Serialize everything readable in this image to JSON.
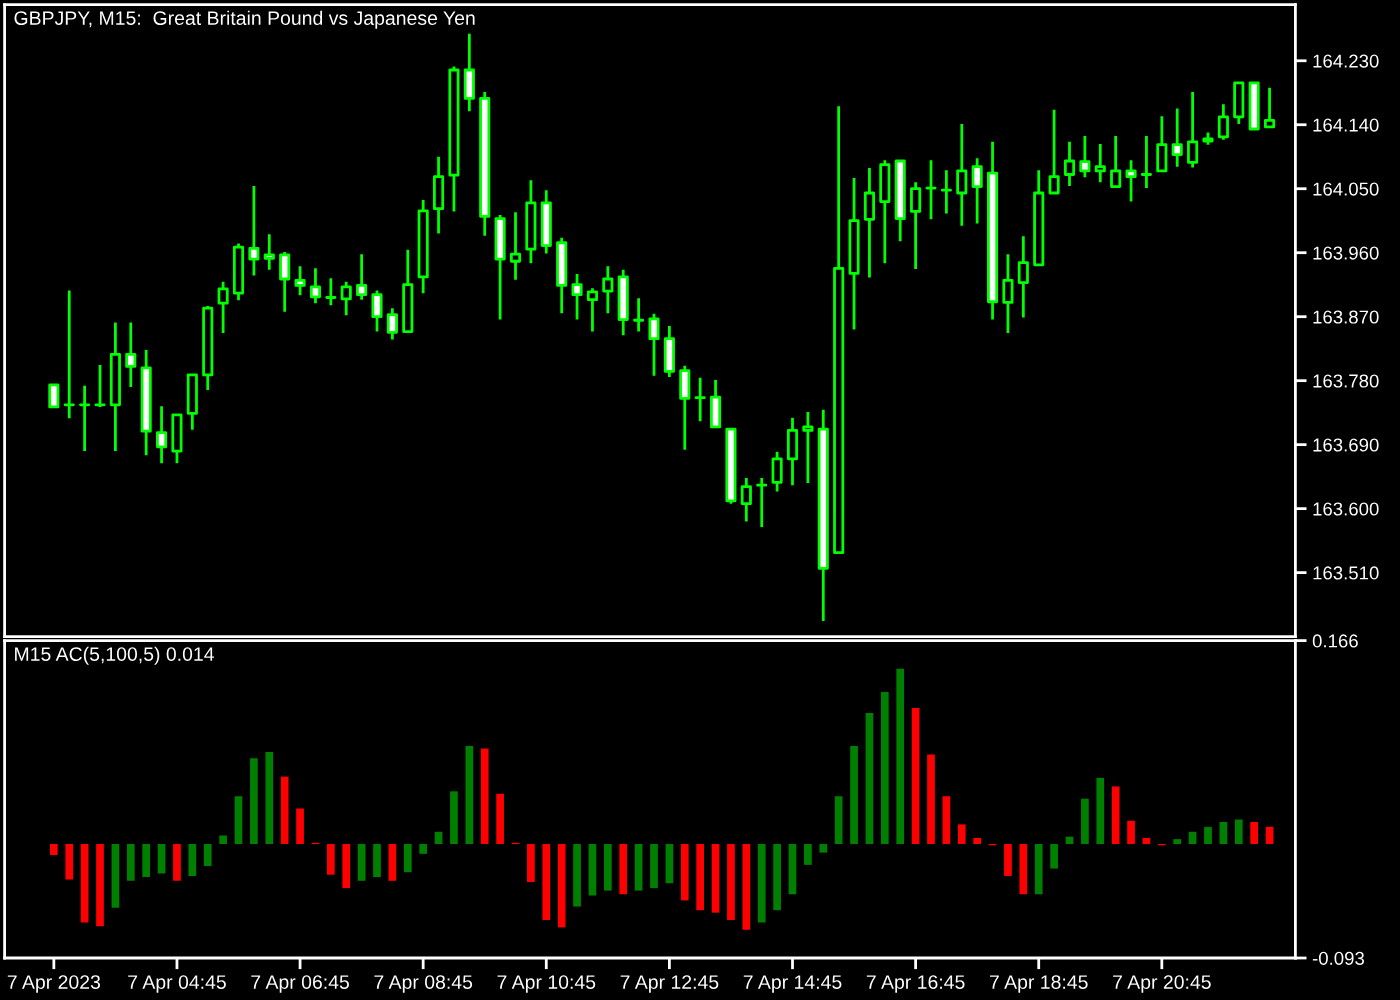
{
  "chart_data": [
    {
      "type": "candlestick",
      "title": "GBPJPY, M15:  Great Britain Pound vs Japanese Yen",
      "categories": [
        null,
        null,
        null,
        null,
        null,
        null,
        null,
        null,
        null,
        null,
        null,
        null,
        null,
        null,
        null,
        null,
        null,
        null,
        null,
        null,
        null,
        null,
        null,
        null,
        null,
        null,
        null,
        null,
        null,
        null,
        null,
        null,
        null,
        null,
        null,
        null,
        null,
        null,
        null,
        null,
        null,
        null,
        null,
        null,
        null,
        null,
        null,
        null,
        null,
        null,
        null,
        null,
        null,
        null,
        null,
        null,
        null,
        null,
        null,
        null,
        null,
        null,
        null,
        null,
        null,
        null,
        null,
        null,
        null,
        null,
        null,
        null,
        null,
        null,
        null,
        null,
        null,
        null,
        null,
        null
      ],
      "ohlc": [
        [
          163.774,
          163.774,
          163.743,
          163.743
        ],
        [
          163.746,
          163.907,
          163.727,
          163.746
        ],
        [
          163.746,
          163.773,
          163.681,
          163.746
        ],
        [
          163.746,
          163.802,
          163.743,
          163.746
        ],
        [
          163.746,
          163.862,
          163.681,
          163.817
        ],
        [
          163.817,
          163.862,
          163.771,
          163.8
        ],
        [
          163.798,
          163.823,
          163.675,
          163.709
        ],
        [
          163.707,
          163.744,
          163.664,
          163.687
        ],
        [
          163.681,
          163.732,
          163.664,
          163.732
        ],
        [
          163.734,
          163.788,
          163.711,
          163.788
        ],
        [
          163.788,
          163.885,
          163.767,
          163.882
        ],
        [
          163.889,
          163.919,
          163.847,
          163.909
        ],
        [
          163.903,
          163.973,
          163.893,
          163.968
        ],
        [
          163.966,
          164.054,
          163.928,
          163.951
        ],
        [
          163.957,
          163.986,
          163.936,
          163.952
        ],
        [
          163.957,
          163.961,
          163.877,
          163.923
        ],
        [
          163.921,
          163.941,
          163.9,
          163.914
        ],
        [
          163.912,
          163.938,
          163.889,
          163.898
        ],
        [
          163.897,
          163.924,
          163.886,
          163.897
        ],
        [
          163.895,
          163.919,
          163.872,
          163.912
        ],
        [
          163.914,
          163.958,
          163.894,
          163.901
        ],
        [
          163.901,
          163.907,
          163.849,
          163.87
        ],
        [
          163.873,
          163.882,
          163.838,
          163.848
        ],
        [
          163.849,
          163.964,
          163.847,
          163.915
        ],
        [
          163.926,
          164.034,
          163.903,
          164.019
        ],
        [
          164.022,
          164.095,
          163.987,
          164.067
        ],
        [
          164.069,
          164.222,
          164.018,
          164.217
        ],
        [
          164.217,
          164.268,
          164.159,
          164.177
        ],
        [
          164.177,
          164.186,
          163.984,
          164.011
        ],
        [
          164.008,
          164.013,
          163.866,
          163.951
        ],
        [
          163.948,
          164.017,
          163.922,
          163.958
        ],
        [
          163.965,
          164.062,
          163.945,
          164.03
        ],
        [
          164.03,
          164.048,
          163.959,
          163.97
        ],
        [
          163.974,
          163.981,
          163.875,
          163.914
        ],
        [
          163.915,
          163.93,
          163.866,
          163.901
        ],
        [
          163.894,
          163.91,
          163.849,
          163.905
        ],
        [
          163.906,
          163.941,
          163.875,
          163.923
        ],
        [
          163.926,
          163.936,
          163.844,
          163.866
        ],
        [
          163.865,
          163.896,
          163.849,
          163.865
        ],
        [
          163.867,
          163.874,
          163.787,
          163.839
        ],
        [
          163.839,
          163.857,
          163.785,
          163.793
        ],
        [
          163.794,
          163.801,
          163.683,
          163.755
        ],
        [
          163.756,
          163.784,
          163.723,
          163.756
        ],
        [
          163.757,
          163.781,
          163.713,
          163.715
        ],
        [
          163.712,
          163.712,
          163.607,
          163.611
        ],
        [
          163.607,
          163.643,
          163.582,
          163.631
        ],
        [
          163.633,
          163.643,
          163.574,
          163.633
        ],
        [
          163.637,
          163.68,
          163.624,
          163.67
        ],
        [
          163.67,
          163.728,
          163.633,
          163.71
        ],
        [
          163.71,
          163.736,
          163.636,
          163.715
        ],
        [
          163.712,
          163.739,
          163.442,
          163.516
        ],
        [
          163.538,
          164.166,
          163.538,
          163.938
        ],
        [
          163.931,
          164.065,
          163.852,
          164.005
        ],
        [
          164.007,
          164.079,
          163.925,
          164.044
        ],
        [
          164.032,
          164.09,
          163.945,
          164.084
        ],
        [
          164.089,
          164.089,
          163.976,
          164.008
        ],
        [
          164.018,
          164.059,
          163.937,
          164.05
        ],
        [
          164.051,
          164.09,
          164.007,
          164.051
        ],
        [
          164.048,
          164.076,
          164.015,
          164.048
        ],
        [
          164.044,
          164.141,
          163.998,
          164.075
        ],
        [
          164.081,
          164.093,
          164.001,
          164.053
        ],
        [
          164.072,
          164.116,
          163.866,
          163.891
        ],
        [
          163.89,
          163.958,
          163.847,
          163.921
        ],
        [
          163.918,
          163.983,
          163.869,
          163.946
        ],
        [
          163.943,
          164.076,
          163.943,
          164.044
        ],
        [
          164.044,
          164.161,
          164.044,
          164.067
        ],
        [
          164.07,
          164.116,
          164.054,
          164.089
        ],
        [
          164.088,
          164.124,
          164.066,
          164.075
        ],
        [
          164.075,
          164.113,
          164.059,
          164.081
        ],
        [
          164.053,
          164.124,
          164.053,
          164.075
        ],
        [
          164.075,
          164.09,
          164.032,
          164.067
        ],
        [
          164.07,
          164.124,
          164.051,
          164.07
        ],
        [
          164.075,
          164.152,
          164.075,
          164.112
        ],
        [
          164.112,
          164.163,
          164.081,
          164.098
        ],
        [
          164.087,
          164.186,
          164.08,
          164.116
        ],
        [
          164.117,
          164.129,
          164.112,
          164.12
        ],
        [
          164.123,
          164.169,
          164.119,
          164.151
        ],
        [
          164.151,
          164.199,
          164.141,
          164.199
        ],
        [
          164.199,
          164.199,
          164.134,
          164.134
        ],
        [
          164.137,
          164.192,
          164.137,
          164.146
        ]
      ],
      "color": "#00ff00",
      "colors": [
        "#ffffff",
        "#00ff00",
        "#00ff00",
        "#00ff00",
        "#000000",
        "#ffffff",
        "#ffffff",
        "#ffffff",
        "#000000",
        "#000000",
        "#000000",
        "#000000",
        "#000000",
        "#ffffff",
        "#ffffff",
        "#ffffff",
        "#ffffff",
        "#ffffff",
        "#00ff00",
        "#000000",
        "#ffffff",
        "#ffffff",
        "#ffffff",
        "#000000",
        "#000000",
        "#000000",
        "#000000",
        "#ffffff",
        "#ffffff",
        "#ffffff",
        "#000000",
        "#000000",
        "#ffffff",
        "#ffffff",
        "#ffffff",
        "#000000",
        "#000000",
        "#ffffff",
        "#00ff00",
        "#ffffff",
        "#ffffff",
        "#ffffff",
        "#00ff00",
        "#ffffff",
        "#ffffff",
        "#000000",
        "#00ff00",
        "#000000",
        "#000000",
        "#000000",
        "#ffffff",
        "#000000",
        "#000000",
        "#000000",
        "#000000",
        "#ffffff",
        "#000000",
        "#00ff00",
        "#00ff00",
        "#000000",
        "#ffffff",
        "#ffffff",
        "#000000",
        "#000000",
        "#000000",
        "#000000",
        "#000000",
        "#ffffff",
        "#000000",
        "#000000",
        "#ffffff",
        "#00ff00",
        "#000000",
        "#ffffff",
        "#000000",
        "#00ff00",
        "#000000",
        "#000000",
        "#ffffff",
        "#000000"
      ],
      "ylim": [
        163.42,
        164.309
      ],
      "yticks": [
        {
          "value": 163.51,
          "label": "163.510"
        },
        {
          "value": 163.6,
          "label": "163.600"
        },
        {
          "value": 163.69,
          "label": "163.690"
        },
        {
          "value": 163.78,
          "label": "163.780"
        },
        {
          "value": 163.87,
          "label": "163.870"
        },
        {
          "value": 163.96,
          "label": "163.960"
        },
        {
          "value": 164.05,
          "label": "164.050"
        },
        {
          "value": 164.14,
          "label": "164.140"
        },
        {
          "value": 164.23,
          "label": "164.230"
        }
      ],
      "tick_labels": "y"
    },
    {
      "type": "bar",
      "title": "M15 AC(5,100,5) 0.014",
      "categories": [
        "7 Apr 2023",
        null,
        null,
        null,
        null,
        null,
        null,
        null,
        "7 Apr 04:45",
        null,
        null,
        null,
        null,
        null,
        null,
        null,
        "7 Apr 06:45",
        null,
        null,
        null,
        null,
        null,
        null,
        null,
        "7 Apr 08:45",
        null,
        null,
        null,
        null,
        null,
        null,
        null,
        "7 Apr 10:45",
        null,
        null,
        null,
        null,
        null,
        null,
        null,
        "7 Apr 12:45",
        null,
        null,
        null,
        null,
        null,
        null,
        null,
        "7 Apr 14:45",
        null,
        null,
        null,
        null,
        null,
        null,
        null,
        "7 Apr 16:45",
        null,
        null,
        null,
        null,
        null,
        null,
        null,
        "7 Apr 18:45",
        null,
        null,
        null,
        null,
        null,
        null,
        null,
        "7 Apr 20:45",
        null,
        null,
        null,
        null,
        null,
        null,
        null
      ],
      "values": [
        -0.009,
        -0.029,
        -0.064,
        -0.067,
        -0.052,
        -0.03,
        -0.027,
        -0.024,
        -0.03,
        -0.026,
        -0.018,
        0.007,
        0.039,
        0.07,
        0.075,
        0.055,
        0.029,
        0.001,
        -0.025,
        -0.036,
        -0.03,
        -0.027,
        -0.03,
        -0.023,
        -0.008,
        0.01,
        0.043,
        0.08,
        0.078,
        0.041,
        0.001,
        -0.031,
        -0.062,
        -0.068,
        -0.051,
        -0.042,
        -0.038,
        -0.041,
        -0.038,
        -0.036,
        -0.032,
        -0.046,
        -0.054,
        -0.056,
        -0.062,
        -0.07,
        -0.064,
        -0.054,
        -0.041,
        -0.017,
        -0.007,
        0.039,
        0.08,
        0.107,
        0.124,
        0.143,
        0.111,
        0.073,
        0.039,
        0.016,
        0.005,
        -0.001,
        -0.026,
        -0.041,
        -0.041,
        -0.02,
        0.006,
        0.037,
        0.054,
        0.047,
        0.019,
        0.005,
        -0.001,
        0.004,
        0.01,
        0.014,
        0.018,
        0.02,
        0.018,
        0.014
      ],
      "colors": [
        "#ff0000",
        "#ff0000",
        "#ff0000",
        "#ff0000",
        "#008000",
        "#008000",
        "#008000",
        "#008000",
        "#ff0000",
        "#008000",
        "#008000",
        "#008000",
        "#008000",
        "#008000",
        "#008000",
        "#ff0000",
        "#ff0000",
        "#ff0000",
        "#ff0000",
        "#ff0000",
        "#008000",
        "#008000",
        "#ff0000",
        "#008000",
        "#008000",
        "#008000",
        "#008000",
        "#008000",
        "#ff0000",
        "#ff0000",
        "#ff0000",
        "#ff0000",
        "#ff0000",
        "#ff0000",
        "#008000",
        "#008000",
        "#008000",
        "#ff0000",
        "#008000",
        "#008000",
        "#008000",
        "#ff0000",
        "#ff0000",
        "#ff0000",
        "#ff0000",
        "#ff0000",
        "#008000",
        "#008000",
        "#008000",
        "#008000",
        "#008000",
        "#008000",
        "#008000",
        "#008000",
        "#008000",
        "#008000",
        "#ff0000",
        "#ff0000",
        "#ff0000",
        "#ff0000",
        "#ff0000",
        "#ff0000",
        "#ff0000",
        "#ff0000",
        "#008000",
        "#008000",
        "#008000",
        "#008000",
        "#008000",
        "#ff0000",
        "#ff0000",
        "#ff0000",
        "#ff0000",
        "#008000",
        "#008000",
        "#008000",
        "#008000",
        "#008000",
        "#ff0000",
        "#ff0000"
      ],
      "ylim": [
        -0.093,
        0.166
      ],
      "yticks": [
        0.166,
        -0.093
      ]
    }
  ]
}
